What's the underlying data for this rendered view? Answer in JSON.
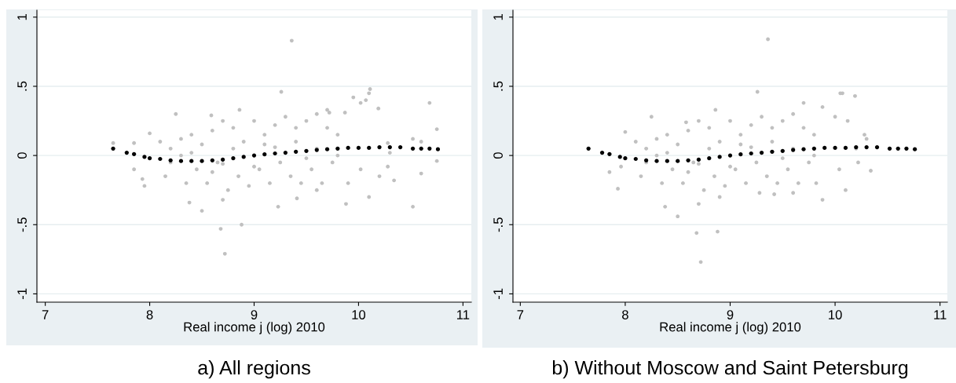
{
  "chart_data": [
    {
      "type": "scatter",
      "title": "a) All regions",
      "xlabel": "Real income j (log) 2010",
      "xlim": [
        6.92,
        11.08
      ],
      "ylim": [
        -1.06,
        1.05
      ],
      "xticks": [
        7,
        8,
        9,
        10,
        11
      ],
      "yticks": [
        {
          "value": -1,
          "label": "-1"
        },
        {
          "value": -0.5,
          "label": "-.5"
        },
        0,
        {
          "value": 0.5,
          "label": ".5"
        },
        1
      ],
      "grid": "y",
      "marker": "circle",
      "series": [
        {
          "color": "#c0c0c0",
          "x": [
            9.36,
            9.26,
            10.11,
            10.1,
            9.95,
            10.02,
            10.07,
            10.68,
            10.19,
            10.75,
            10.52,
            10.6,
            10.75,
            10.6,
            10.34,
            10.52,
            10.1,
            9.88,
            8.72,
            8.68,
            8.88,
            8.5,
            8.38,
            9.23,
            9.41,
            8.7,
            8.25,
            8.59,
            8.86,
            7.65,
            7.85,
            7.85,
            7.93,
            7.95,
            8.0,
            9.7,
            9.72,
            9.87,
            10.2,
            10.28,
            10.3,
            10.28,
            9.9,
            10.02,
            9.6,
            8.1,
            8.15,
            8.2,
            8.3,
            8.35,
            8.4,
            8.45,
            8.5,
            8.55,
            8.6,
            8.65,
            8.7,
            8.75,
            8.8,
            8.85,
            8.9,
            8.95,
            9.0,
            9.05,
            9.1,
            9.15,
            9.2,
            9.25,
            9.3,
            9.35,
            9.4,
            9.45,
            9.5,
            9.55,
            9.6,
            9.65,
            9.7,
            9.75,
            9.8,
            8.2,
            8.4,
            8.6,
            8.8,
            9.0,
            9.2,
            9.4,
            9.6,
            9.8,
            8.3,
            8.7,
            9.1,
            9.5
          ],
          "values": [
            0.83,
            0.46,
            0.48,
            0.45,
            0.42,
            0.38,
            0.4,
            0.38,
            0.34,
            0.19,
            0.12,
            0.1,
            -0.04,
            -0.13,
            -0.18,
            -0.37,
            -0.3,
            -0.35,
            -0.71,
            -0.53,
            -0.5,
            -0.4,
            -0.34,
            -0.37,
            -0.31,
            -0.32,
            0.3,
            0.29,
            0.33,
            0.09,
            0.09,
            -0.1,
            -0.17,
            -0.22,
            0.16,
            0.33,
            0.31,
            0.31,
            -0.15,
            0.09,
            0.02,
            -0.08,
            -0.2,
            -0.1,
            -0.25,
            0.1,
            -0.15,
            0.05,
            0.12,
            -0.2,
            0.15,
            -0.1,
            0.08,
            -0.2,
            0.18,
            -0.05,
            0.25,
            -0.25,
            0.2,
            -0.15,
            0.1,
            -0.22,
            0.25,
            -0.1,
            0.15,
            -0.2,
            0.22,
            -0.05,
            0.28,
            -0.15,
            0.2,
            -0.2,
            0.25,
            -0.1,
            0.3,
            -0.2,
            0.2,
            -0.05,
            0.15,
            -0.05,
            0.02,
            -0.12,
            0.05,
            -0.08,
            0.06,
            0.1,
            0.05,
            0.0,
            0.0,
            -0.06,
            0.08,
            -0.02
          ]
        },
        {
          "type": "scatter",
          "color": "#000000",
          "x": [
            7.65,
            7.78,
            7.85,
            7.95,
            8.0,
            8.1,
            8.2,
            8.3,
            8.4,
            8.5,
            8.6,
            8.7,
            8.8,
            8.9,
            9.0,
            9.1,
            9.2,
            9.3,
            9.4,
            9.5,
            9.6,
            9.7,
            9.8,
            9.9,
            10.0,
            10.1,
            10.2,
            10.3,
            10.4,
            10.52,
            10.6,
            10.68,
            10.76
          ],
          "values": [
            0.05,
            0.02,
            0.01,
            -0.01,
            -0.02,
            -0.025,
            -0.035,
            -0.04,
            -0.04,
            -0.04,
            -0.035,
            -0.03,
            -0.02,
            -0.01,
            0.0,
            0.008,
            0.015,
            0.02,
            0.027,
            0.033,
            0.04,
            0.045,
            0.05,
            0.055,
            0.055,
            0.055,
            0.06,
            0.06,
            0.06,
            0.05,
            0.05,
            0.05,
            0.045
          ]
        }
      ]
    },
    {
      "type": "scatter",
      "title": "b) Without Moscow and Saint Petersburg",
      "xlabel": "Real income j (log) 2010",
      "xlim": [
        6.93,
        11.07
      ],
      "ylim": [
        -1.06,
        1.05
      ],
      "xticks": [
        7,
        8,
        9,
        10,
        11
      ],
      "yticks": [
        {
          "value": -1,
          "label": "-1"
        },
        {
          "value": -0.5,
          "label": "-.5"
        },
        0,
        {
          "value": 0.5,
          "label": ".5"
        },
        1
      ],
      "grid": "y",
      "marker": "circle",
      "series": [
        {
          "color": "#c0c0c0",
          "x": [
            9.36,
            9.26,
            10.05,
            10.07,
            10.19,
            9.88,
            10.0,
            9.7,
            10.12,
            10.28,
            10.34,
            10.1,
            9.88,
            8.72,
            8.68,
            8.88,
            8.5,
            8.38,
            8.7,
            8.9,
            9.28,
            9.42,
            8.25,
            8.58,
            8.86,
            7.85,
            7.93,
            7.96,
            8.0,
            10.2,
            10.22,
            10.3,
            10.04,
            9.6,
            9.82,
            8.1,
            8.15,
            8.2,
            8.3,
            8.35,
            8.4,
            8.45,
            8.5,
            8.55,
            8.6,
            8.65,
            8.7,
            8.75,
            8.8,
            8.85,
            8.9,
            8.95,
            9.0,
            9.05,
            9.1,
            9.15,
            9.2,
            9.25,
            9.3,
            9.35,
            9.4,
            9.45,
            9.5,
            9.55,
            9.6,
            9.65,
            9.7,
            9.75,
            9.8,
            8.2,
            8.4,
            8.6,
            8.8,
            9.0,
            9.2,
            9.4,
            9.6,
            9.8,
            8.3,
            8.7,
            9.1,
            9.5
          ],
          "values": [
            0.84,
            0.46,
            0.45,
            0.45,
            0.43,
            0.35,
            0.28,
            0.38,
            0.25,
            0.15,
            -0.11,
            -0.25,
            -0.32,
            -0.77,
            -0.56,
            -0.55,
            -0.44,
            -0.37,
            -0.35,
            -0.3,
            -0.27,
            -0.28,
            0.28,
            0.24,
            0.33,
            -0.12,
            -0.24,
            -0.08,
            0.17,
            0.05,
            -0.05,
            0.12,
            -0.1,
            -0.27,
            -0.2,
            0.1,
            -0.15,
            0.05,
            0.12,
            -0.2,
            0.15,
            -0.1,
            0.08,
            -0.2,
            0.18,
            -0.05,
            0.25,
            -0.25,
            0.2,
            -0.15,
            0.1,
            -0.22,
            0.25,
            -0.1,
            0.15,
            -0.2,
            0.22,
            -0.05,
            0.28,
            -0.15,
            0.2,
            -0.2,
            0.25,
            -0.1,
            0.3,
            -0.2,
            0.2,
            -0.05,
            0.15,
            -0.05,
            0.02,
            -0.12,
            0.05,
            -0.08,
            0.06,
            0.1,
            0.05,
            0.0,
            0.0,
            -0.06,
            0.08,
            -0.02
          ]
        },
        {
          "type": "scatter",
          "color": "#000000",
          "x": [
            7.65,
            7.78,
            7.85,
            7.95,
            8.0,
            8.1,
            8.2,
            8.3,
            8.4,
            8.5,
            8.6,
            8.7,
            8.8,
            8.9,
            9.0,
            9.1,
            9.2,
            9.3,
            9.4,
            9.5,
            9.6,
            9.7,
            9.8,
            9.9,
            10.0,
            10.1,
            10.2,
            10.3,
            10.4,
            10.52,
            10.6,
            10.68,
            10.76
          ],
          "values": [
            0.05,
            0.02,
            0.01,
            -0.01,
            -0.02,
            -0.025,
            -0.035,
            -0.04,
            -0.04,
            -0.04,
            -0.035,
            -0.03,
            -0.02,
            -0.01,
            0.0,
            0.008,
            0.015,
            0.02,
            0.027,
            0.033,
            0.04,
            0.045,
            0.05,
            0.055,
            0.055,
            0.055,
            0.06,
            0.06,
            0.06,
            0.05,
            0.05,
            0.05,
            0.045
          ]
        }
      ]
    }
  ]
}
